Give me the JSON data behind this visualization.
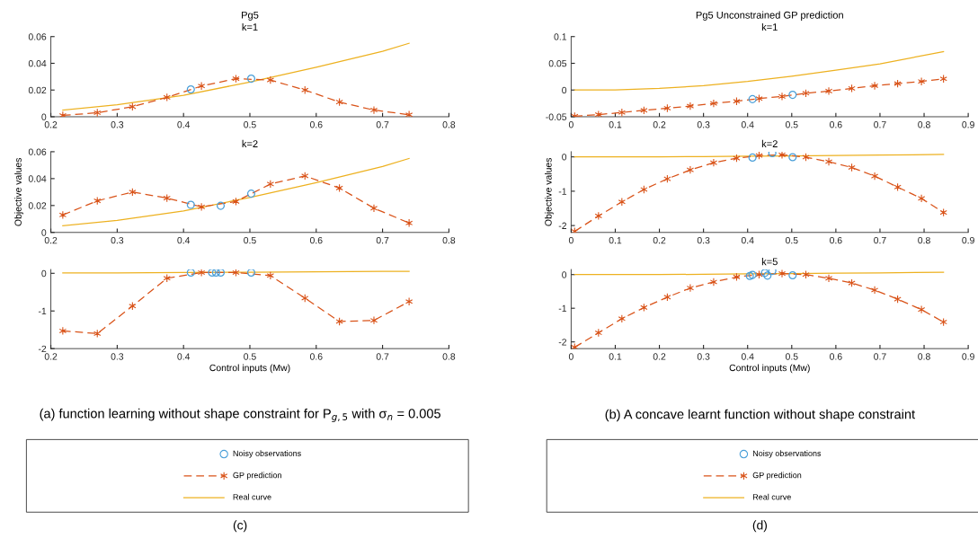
{
  "chart_data": [
    {
      "type": "line",
      "title": "Pg5",
      "subtitle": "k=1",
      "xlim": [
        0.2,
        0.8
      ],
      "xticks": [
        0.2,
        0.3,
        0.4,
        0.5,
        0.6,
        0.7,
        0.8
      ],
      "ylim": [
        0,
        0.06
      ],
      "yticks": [
        0,
        0.02,
        0.04,
        0.06
      ],
      "series": [
        {
          "type": "scatter",
          "marker": "circle",
          "color": "#4a9fd8",
          "x": [
            0.411,
            0.502
          ],
          "values": [
            0.0205,
            0.0285
          ]
        },
        {
          "type": "line",
          "marker": "cross",
          "line_style": "dashed",
          "color": "#d95319",
          "x": [
            0.218,
            0.27,
            0.323,
            0.375,
            0.427,
            0.479,
            0.531,
            0.583,
            0.635,
            0.687,
            0.74
          ],
          "values": [
            0.001,
            0.003,
            0.0075,
            0.0145,
            0.023,
            0.0285,
            0.0275,
            0.02,
            0.011,
            0.005,
            0.0015
          ]
        },
        {
          "type": "line",
          "line_style": "solid",
          "color": "#edb120",
          "x": [
            0.218,
            0.3,
            0.4,
            0.5,
            0.6,
            0.7,
            0.74
          ],
          "values": [
            0.005,
            0.009,
            0.016,
            0.026,
            0.037,
            0.049,
            0.055
          ]
        }
      ]
    },
    {
      "type": "line",
      "title": "k=2",
      "ylabel": "Objective values",
      "xlim": [
        0.2,
        0.8
      ],
      "xticks": [
        0.2,
        0.3,
        0.4,
        0.5,
        0.6,
        0.7,
        0.8
      ],
      "ylim": [
        0,
        0.06
      ],
      "yticks": [
        0,
        0.02,
        0.04,
        0.06
      ],
      "series": [
        {
          "type": "scatter",
          "marker": "circle",
          "color": "#4a9fd8",
          "x": [
            0.411,
            0.456,
            0.502
          ],
          "values": [
            0.0205,
            0.0198,
            0.0288
          ]
        },
        {
          "type": "line",
          "marker": "cross",
          "line_style": "dashed",
          "color": "#d95319",
          "x": [
            0.218,
            0.27,
            0.323,
            0.375,
            0.427,
            0.479,
            0.531,
            0.583,
            0.635,
            0.687,
            0.74
          ],
          "values": [
            0.013,
            0.0235,
            0.03,
            0.0255,
            0.019,
            0.023,
            0.036,
            0.042,
            0.033,
            0.018,
            0.007
          ]
        },
        {
          "type": "line",
          "line_style": "solid",
          "color": "#edb120",
          "x": [
            0.218,
            0.3,
            0.4,
            0.5,
            0.6,
            0.7,
            0.74
          ],
          "values": [
            0.005,
            0.009,
            0.016,
            0.026,
            0.037,
            0.049,
            0.055
          ]
        }
      ]
    },
    {
      "type": "line",
      "xlabel": "Control inputs (Mw)",
      "xlim": [
        0.2,
        0.8
      ],
      "xticks": [
        0.2,
        0.3,
        0.4,
        0.5,
        0.6,
        0.7,
        0.8
      ],
      "ylim": [
        -2,
        0.1
      ],
      "yticks": [
        -2,
        -1,
        0
      ],
      "legend": "bottom",
      "annotations": [
        "(a) function learning without shape constraint for P$_{g,5}$ with σ$_{n}$ = 0.005",
        "(c)"
      ],
      "series": [
        {
          "name": "Noisy observations",
          "type": "scatter",
          "marker": "circle",
          "color": "#4a9fd8",
          "x": [
            0.411,
            0.443,
            0.449,
            0.456,
            0.502
          ],
          "values": [
            0.02,
            0.02,
            0.02,
            0.02,
            0.02
          ]
        },
        {
          "name": "GP prediction",
          "type": "line",
          "marker": "cross",
          "line_style": "dashed",
          "color": "#d95319",
          "x": [
            0.218,
            0.27,
            0.323,
            0.375,
            0.427,
            0.479,
            0.531,
            0.583,
            0.635,
            0.687,
            0.74
          ],
          "values": [
            -1.53,
            -1.6,
            -0.87,
            -0.13,
            0.02,
            0.02,
            -0.06,
            -0.66,
            -1.28,
            -1.25,
            -0.75
          ]
        },
        {
          "name": "Real curve",
          "type": "line",
          "line_style": "solid",
          "color": "#edb120",
          "x": [
            0.218,
            0.3,
            0.4,
            0.5,
            0.6,
            0.7,
            0.74
          ],
          "values": [
            0.01,
            0.01,
            0.02,
            0.03,
            0.04,
            0.05,
            0.05
          ]
        }
      ]
    },
    {
      "type": "line",
      "title": "Pg5 Unconstrained GP prediction",
      "subtitle": "k=1",
      "xlim": [
        0,
        0.9
      ],
      "xticks": [
        0,
        0.1,
        0.2,
        0.3,
        0.4,
        0.5,
        0.6,
        0.7,
        0.8,
        0.9
      ],
      "ylim": [
        -0.05,
        0.1
      ],
      "yticks": [
        -0.05,
        0,
        0.05,
        0.1
      ],
      "series": [
        {
          "type": "scatter",
          "marker": "circle",
          "color": "#4a9fd8",
          "x": [
            0.411,
            0.502
          ],
          "values": [
            -0.017,
            -0.009
          ]
        },
        {
          "type": "line",
          "marker": "cross",
          "line_style": "dashed",
          "color": "#d95319",
          "x": [
            0.008,
            0.062,
            0.115,
            0.165,
            0.218,
            0.27,
            0.323,
            0.375,
            0.426,
            0.478,
            0.532,
            0.584,
            0.636,
            0.688,
            0.74,
            0.794,
            0.844
          ],
          "values": [
            -0.049,
            -0.046,
            -0.042,
            -0.038,
            -0.034,
            -0.03,
            -0.025,
            -0.021,
            -0.016,
            -0.012,
            -0.006,
            -0.002,
            0.003,
            0.008,
            0.012,
            0.016,
            0.021
          ]
        },
        {
          "type": "line",
          "line_style": "solid",
          "color": "#edb120",
          "x": [
            0.008,
            0.1,
            0.2,
            0.3,
            0.4,
            0.5,
            0.6,
            0.7,
            0.844
          ],
          "values": [
            0,
            0,
            0.003,
            0.008,
            0.016,
            0.026,
            0.037,
            0.049,
            0.072
          ]
        }
      ]
    },
    {
      "type": "line",
      "title": "k=2",
      "ylabel": "Objective values",
      "xlim": [
        0,
        0.9
      ],
      "xticks": [
        0,
        0.1,
        0.2,
        0.3,
        0.4,
        0.5,
        0.6,
        0.7,
        0.8,
        0.9
      ],
      "ylim": [
        -2.2,
        0.15
      ],
      "yticks": [
        -2,
        -1,
        0
      ],
      "series": [
        {
          "type": "scatter",
          "marker": "circle",
          "color": "#4a9fd8",
          "x": [
            0.411,
            0.456,
            0.502
          ],
          "values": [
            -0.02,
            0.11,
            -0.01
          ]
        },
        {
          "type": "line",
          "marker": "cross",
          "line_style": "dashed",
          "color": "#d95319",
          "x": [
            0.008,
            0.062,
            0.115,
            0.165,
            0.218,
            0.27,
            0.323,
            0.375,
            0.426,
            0.478,
            0.532,
            0.584,
            0.636,
            0.688,
            0.74,
            0.794,
            0.844
          ],
          "values": [
            -2.17,
            -1.72,
            -1.31,
            -0.95,
            -0.64,
            -0.38,
            -0.17,
            -0.04,
            0.04,
            0.06,
            -0.01,
            -0.14,
            -0.31,
            -0.56,
            -0.88,
            -1.21,
            -1.62
          ]
        },
        {
          "type": "line",
          "line_style": "solid",
          "color": "#edb120",
          "x": [
            0.008,
            0.1,
            0.2,
            0.3,
            0.4,
            0.5,
            0.6,
            0.7,
            0.844
          ],
          "values": [
            0,
            0,
            0,
            0.01,
            0.02,
            0.03,
            0.04,
            0.05,
            0.07
          ]
        }
      ]
    },
    {
      "type": "line",
      "title": "k=5",
      "xlabel": "Control inputs (Mw)",
      "xlim": [
        0,
        0.9
      ],
      "xticks": [
        0,
        0.1,
        0.2,
        0.3,
        0.4,
        0.5,
        0.6,
        0.7,
        0.8,
        0.9
      ],
      "ylim": [
        -2.2,
        0.15
      ],
      "yticks": [
        -2,
        -1,
        0
      ],
      "legend": "bottom",
      "annotations": [
        "(b) A concave learnt function without shape constraint",
        "(d)"
      ],
      "series": [
        {
          "name": "Noisy observations",
          "type": "scatter",
          "marker": "circle",
          "color": "#4a9fd8",
          "x": [
            0.405,
            0.411,
            0.439,
            0.445,
            0.456,
            0.502
          ],
          "values": [
            -0.04,
            -0.01,
            0.05,
            -0.03,
            0.11,
            -0.02
          ]
        },
        {
          "name": "GP prediction",
          "type": "line",
          "marker": "cross",
          "line_style": "dashed",
          "color": "#d95319",
          "x": [
            0.008,
            0.062,
            0.115,
            0.165,
            0.218,
            0.27,
            0.323,
            0.375,
            0.426,
            0.478,
            0.532,
            0.584,
            0.636,
            0.688,
            0.74,
            0.794,
            0.844
          ],
          "values": [
            -2.16,
            -1.73,
            -1.31,
            -0.98,
            -0.67,
            -0.4,
            -0.22,
            -0.07,
            0,
            0.03,
            0,
            -0.11,
            -0.25,
            -0.46,
            -0.73,
            -1.04,
            -1.41
          ]
        },
        {
          "name": "Real curve",
          "type": "line",
          "line_style": "solid",
          "color": "#edb120",
          "x": [
            0.008,
            0.1,
            0.2,
            0.3,
            0.4,
            0.5,
            0.6,
            0.7,
            0.844
          ],
          "values": [
            0,
            0,
            0,
            0.01,
            0.02,
            0.03,
            0.04,
            0.05,
            0.07
          ]
        }
      ]
    }
  ]
}
